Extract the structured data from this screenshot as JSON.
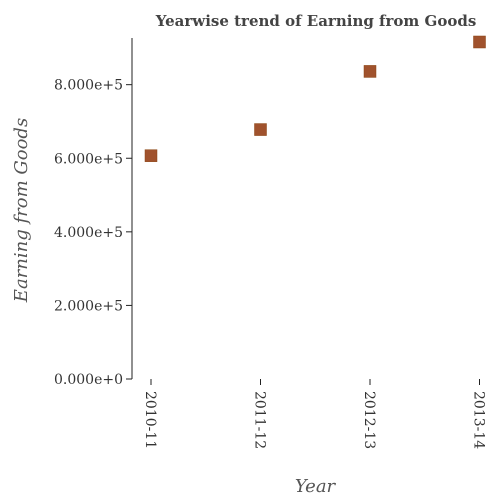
{
  "chart_data": {
    "type": "scatter",
    "title": "Yearwise trend of Earning from Goods",
    "xlabel": "Year",
    "ylabel": "Earning from Goods",
    "categories": [
      "2010-11",
      "2011-12",
      "2012-13",
      "2013-14"
    ],
    "series": [
      {
        "values": [
          607000,
          678000,
          836000,
          916000
        ]
      }
    ],
    "ylim": [
      0,
      920000
    ],
    "yticks": [
      0,
      200000,
      400000,
      600000,
      800000
    ],
    "ytick_labels": [
      "0.000e+0",
      "2.000e+5",
      "4.000e+5",
      "6.000e+5",
      "8.000e+5"
    ],
    "marker": "square",
    "marker_color": "#a0522d",
    "grid": false
  }
}
